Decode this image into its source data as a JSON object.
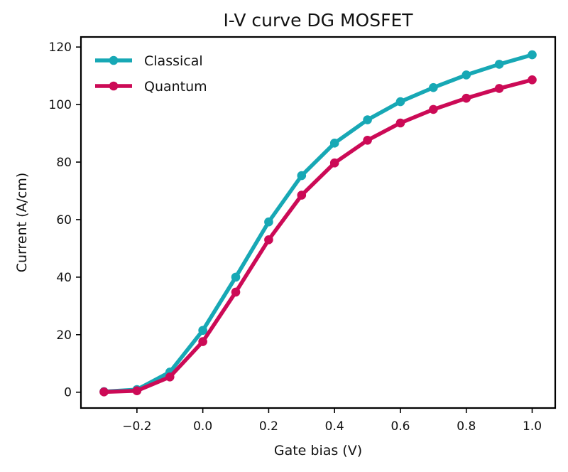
{
  "chart_data": {
    "type": "line",
    "title": "I-V curve DG MOSFET",
    "xlabel": "Gate bias (V)",
    "ylabel": "Current (A/cm)",
    "xlim": [
      -0.37,
      1.07
    ],
    "ylim": [
      -5.5,
      123.5
    ],
    "xticks": [
      -0.2,
      0.0,
      0.2,
      0.4,
      0.6,
      0.8,
      1.0
    ],
    "xtick_labels": [
      "−0.2",
      "0.0",
      "0.2",
      "0.4",
      "0.6",
      "0.8",
      "1.0"
    ],
    "yticks": [
      0,
      20,
      40,
      60,
      80,
      100,
      120
    ],
    "ytick_labels": [
      "0",
      "20",
      "40",
      "60",
      "80",
      "100",
      "120"
    ],
    "grid": false,
    "legend": "top-left",
    "x": [
      -0.3,
      -0.2,
      -0.1,
      0.0,
      0.1,
      0.2,
      0.3,
      0.4,
      0.5,
      0.6,
      0.7,
      0.8,
      0.9,
      1.0
    ],
    "series": [
      {
        "name": "Classical",
        "color": "#17a8b5",
        "values": [
          0.2,
          0.9,
          7.0,
          21.5,
          40.0,
          59.2,
          75.3,
          86.6,
          94.7,
          101.0,
          105.9,
          110.3,
          114.0,
          117.3
        ]
      },
      {
        "name": "Quantum",
        "color": "#cc0a56",
        "values": [
          0.1,
          0.5,
          5.3,
          17.6,
          34.8,
          53.0,
          68.5,
          79.7,
          87.6,
          93.6,
          98.3,
          102.2,
          105.6,
          108.6
        ]
      }
    ]
  }
}
